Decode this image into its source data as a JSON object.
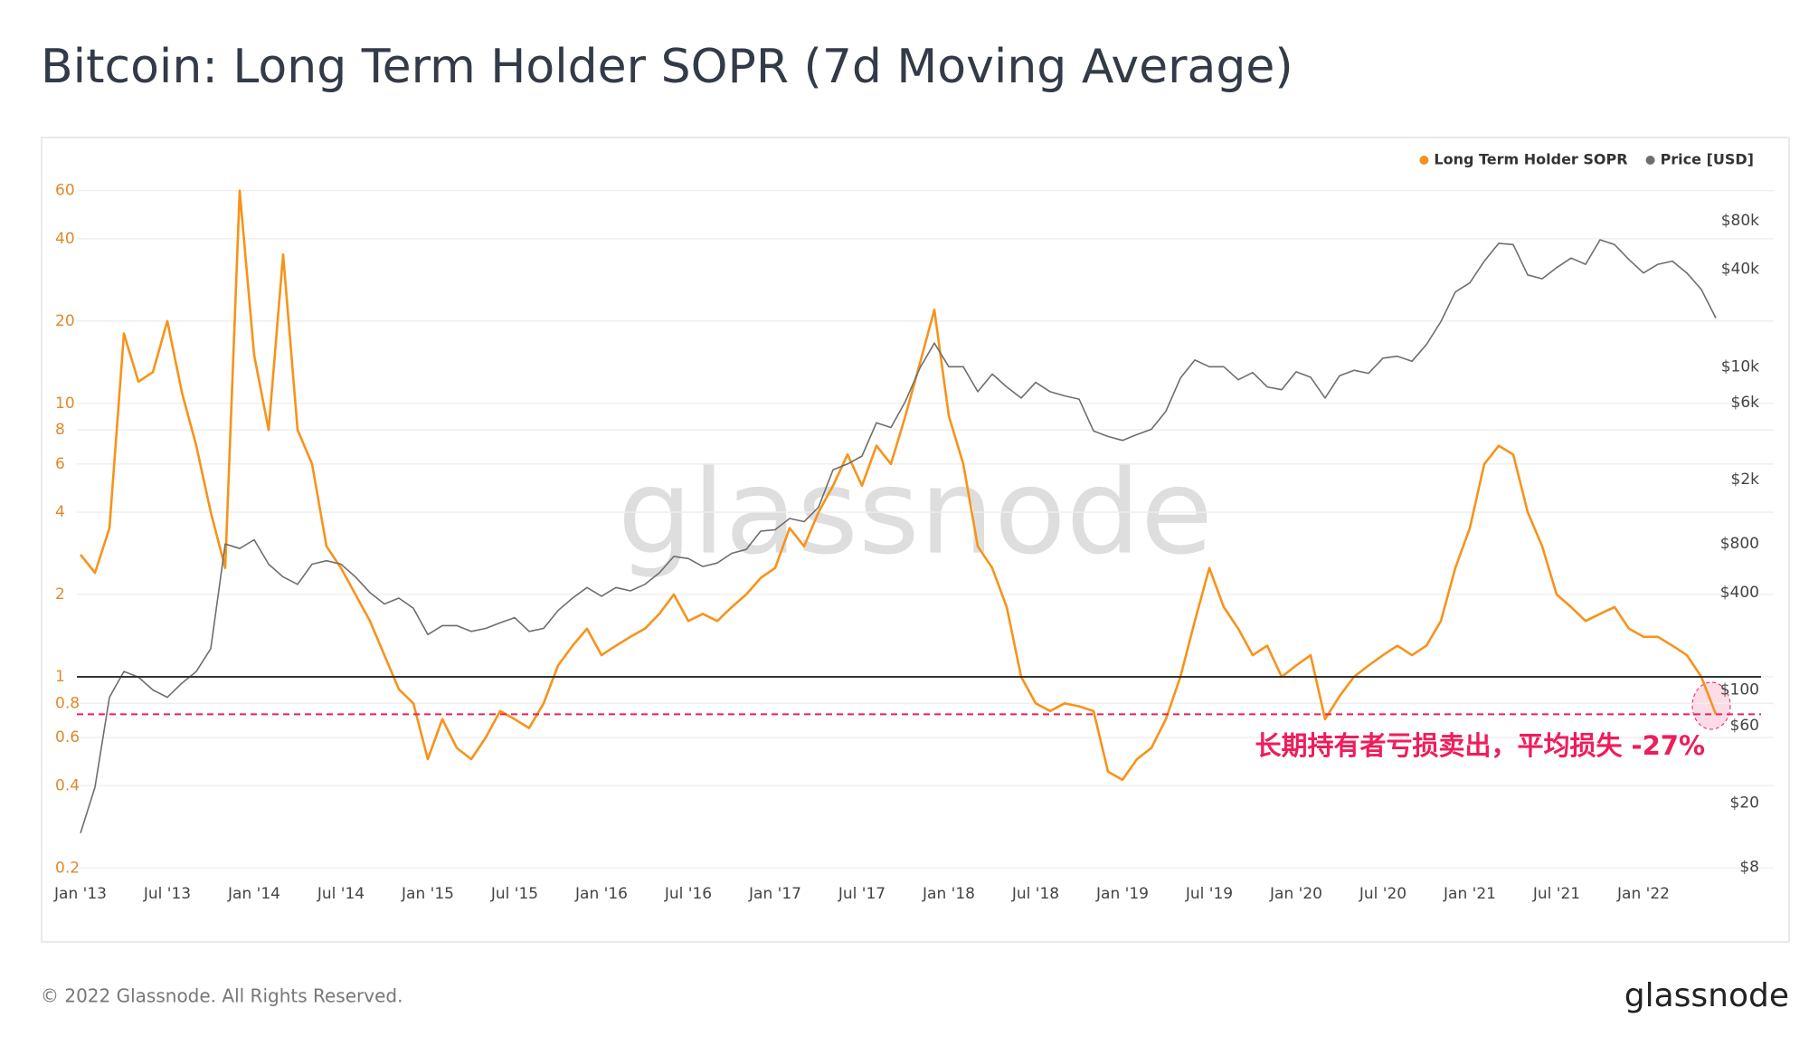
{
  "chart_data": {
    "type": "line",
    "title": "Bitcoin: Long Term Holder SOPR (7d Moving Average)",
    "x": [
      "2013-01",
      "2013-02",
      "2013-03",
      "2013-04",
      "2013-05",
      "2013-06",
      "2013-07",
      "2013-08",
      "2013-09",
      "2013-10",
      "2013-11",
      "2013-12",
      "2014-01",
      "2014-02",
      "2014-03",
      "2014-04",
      "2014-05",
      "2014-06",
      "2014-07",
      "2014-08",
      "2014-09",
      "2014-10",
      "2014-11",
      "2014-12",
      "2015-01",
      "2015-02",
      "2015-03",
      "2015-04",
      "2015-05",
      "2015-06",
      "2015-07",
      "2015-08",
      "2015-09",
      "2015-10",
      "2015-11",
      "2015-12",
      "2016-01",
      "2016-02",
      "2016-03",
      "2016-04",
      "2016-05",
      "2016-06",
      "2016-07",
      "2016-08",
      "2016-09",
      "2016-10",
      "2016-11",
      "2016-12",
      "2017-01",
      "2017-02",
      "2017-03",
      "2017-04",
      "2017-05",
      "2017-06",
      "2017-07",
      "2017-08",
      "2017-09",
      "2017-10",
      "2017-11",
      "2017-12",
      "2018-01",
      "2018-02",
      "2018-03",
      "2018-04",
      "2018-05",
      "2018-06",
      "2018-07",
      "2018-08",
      "2018-09",
      "2018-10",
      "2018-11",
      "2018-12",
      "2019-01",
      "2019-02",
      "2019-03",
      "2019-04",
      "2019-05",
      "2019-06",
      "2019-07",
      "2019-08",
      "2019-09",
      "2019-10",
      "2019-11",
      "2019-12",
      "2020-01",
      "2020-02",
      "2020-03",
      "2020-04",
      "2020-05",
      "2020-06",
      "2020-07",
      "2020-08",
      "2020-09",
      "2020-10",
      "2020-11",
      "2020-12",
      "2021-01",
      "2021-02",
      "2021-03",
      "2021-04",
      "2021-05",
      "2021-06",
      "2021-07",
      "2021-08",
      "2021-09",
      "2021-10",
      "2021-11",
      "2021-12",
      "2022-01",
      "2022-02",
      "2022-03",
      "2022-04",
      "2022-05",
      "2022-06"
    ],
    "series": [
      {
        "name": "Long Term Holder SOPR",
        "color": "#f7931a",
        "values": [
          2.8,
          2.4,
          3.5,
          18,
          12,
          13,
          20,
          11,
          7,
          4,
          2.5,
          60,
          15,
          8,
          35,
          8,
          6,
          3,
          2.5,
          2,
          1.6,
          1.2,
          0.9,
          0.8,
          0.5,
          0.7,
          0.55,
          0.5,
          0.6,
          0.75,
          0.7,
          0.65,
          0.8,
          1.1,
          1.3,
          1.5,
          1.2,
          1.3,
          1.4,
          1.5,
          1.7,
          2.0,
          1.6,
          1.7,
          1.6,
          1.8,
          2.0,
          2.3,
          2.5,
          3.5,
          3.0,
          4.0,
          5.0,
          6.5,
          5.0,
          7.0,
          6.0,
          9.0,
          14,
          22,
          9,
          6,
          3,
          2.5,
          1.8,
          1.0,
          0.8,
          0.75,
          0.8,
          0.78,
          0.75,
          0.45,
          0.42,
          0.5,
          0.55,
          0.7,
          1.0,
          1.6,
          2.5,
          1.8,
          1.5,
          1.2,
          1.3,
          1.0,
          1.1,
          1.2,
          0.7,
          0.85,
          1.0,
          1.1,
          1.2,
          1.3,
          1.2,
          1.3,
          1.6,
          2.5,
          3.5,
          6,
          7,
          6.5,
          4,
          3,
          2,
          1.8,
          1.6,
          1.7,
          1.8,
          1.5,
          1.4,
          1.4,
          1.3,
          1.2,
          1.0,
          0.73
        ]
      },
      {
        "name": "Price [USD]",
        "color": "#6e6e6e",
        "axis": "y2",
        "values": [
          13,
          25,
          90,
          130,
          120,
          100,
          90,
          110,
          130,
          180,
          800,
          750,
          850,
          600,
          500,
          450,
          600,
          630,
          600,
          500,
          400,
          340,
          370,
          320,
          220,
          250,
          250,
          230,
          240,
          260,
          280,
          230,
          240,
          310,
          370,
          430,
          380,
          430,
          410,
          450,
          530,
          670,
          650,
          580,
          610,
          700,
          740,
          960,
          980,
          1150,
          1100,
          1350,
          2300,
          2500,
          2800,
          4500,
          4200,
          6100,
          9800,
          14000,
          10000,
          10000,
          7000,
          9000,
          7500,
          6400,
          8000,
          7000,
          6600,
          6300,
          4000,
          3700,
          3500,
          3800,
          4100,
          5300,
          8500,
          11000,
          10000,
          10000,
          8300,
          9200,
          7500,
          7200,
          9300,
          8600,
          6400,
          8800,
          9500,
          9100,
          11300,
          11600,
          10800,
          13700,
          19000,
          29000,
          33000,
          45000,
          58000,
          57000,
          37000,
          35000,
          41000,
          47000,
          43000,
          61000,
          57000,
          46000,
          38000,
          43000,
          45000,
          38000,
          30000,
          20000
        ]
      }
    ],
    "xlim": [
      "2013-01",
      "2022-10"
    ],
    "xticks": [
      {
        "value": "2013-01",
        "label": "Jan '13"
      },
      {
        "value": "2013-07",
        "label": "Jul '13"
      },
      {
        "value": "2014-01",
        "label": "Jan '14"
      },
      {
        "value": "2014-07",
        "label": "Jul '14"
      },
      {
        "value": "2015-01",
        "label": "Jan '15"
      },
      {
        "value": "2015-07",
        "label": "Jul '15"
      },
      {
        "value": "2016-01",
        "label": "Jan '16"
      },
      {
        "value": "2016-07",
        "label": "Jul '16"
      },
      {
        "value": "2017-01",
        "label": "Jan '17"
      },
      {
        "value": "2017-07",
        "label": "Jul '17"
      },
      {
        "value": "2018-01",
        "label": "Jan '18"
      },
      {
        "value": "2018-07",
        "label": "Jul '18"
      },
      {
        "value": "2019-01",
        "label": "Jan '19"
      },
      {
        "value": "2019-07",
        "label": "Jul '19"
      },
      {
        "value": "2020-01",
        "label": "Jan '20"
      },
      {
        "value": "2020-07",
        "label": "Jul '20"
      },
      {
        "value": "2021-01",
        "label": "Jan '21"
      },
      {
        "value": "2021-07",
        "label": "Jul '21"
      },
      {
        "value": "2022-01",
        "label": "Jan '22"
      }
    ],
    "ylim": [
      0.19,
      83
    ],
    "yscale": "log",
    "yticks": [
      0.2,
      0.4,
      0.6,
      0.8,
      1,
      2,
      4,
      6,
      8,
      10,
      20,
      40,
      60
    ],
    "y2lim": [
      7.25,
      213000
    ],
    "y2scale": "log",
    "y2ticks": [
      {
        "value": 8,
        "label": "$8"
      },
      {
        "value": 20,
        "label": "$20"
      },
      {
        "value": 60,
        "label": "$60"
      },
      {
        "value": 100,
        "label": "$100"
      },
      {
        "value": 400,
        "label": "$400"
      },
      {
        "value": 800,
        "label": "$800"
      },
      {
        "value": 2000,
        "label": "$2k"
      },
      {
        "value": 6000,
        "label": "$6k"
      },
      {
        "value": 10000,
        "label": "$10k"
      },
      {
        "value": 40000,
        "label": "$40k"
      },
      {
        "value": 80000,
        "label": "$80k"
      }
    ],
    "grid": true,
    "legend": "top-right",
    "hlines": [
      {
        "value": 1,
        "color": "#333333",
        "style": "solid"
      },
      {
        "value": 0.73,
        "color": "#ee1d5b",
        "style": "dashed"
      }
    ],
    "annotation": "长期持有者亏损卖出，平均损失 -27%"
  },
  "footer": "© 2022 Glassnode. All Rights Reserved.",
  "brand": "glassnode"
}
